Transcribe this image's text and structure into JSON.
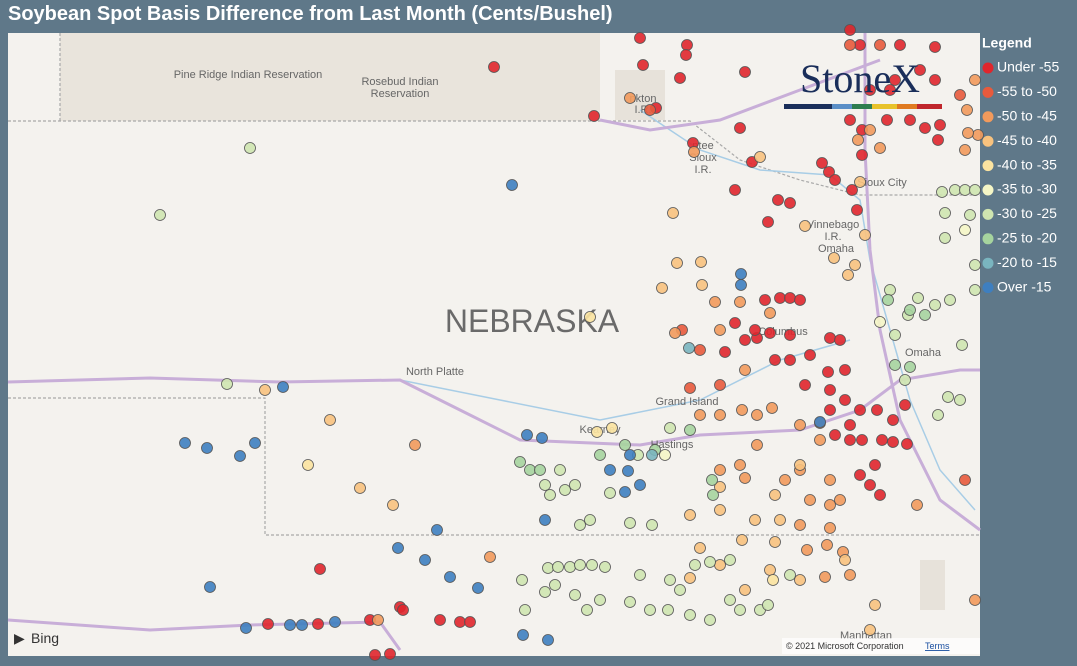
{
  "title": "Soybean Spot Basis Difference from Last Month (Cents/Bushel)",
  "legend": {
    "title": "Legend",
    "items": [
      {
        "label": "Under -55",
        "color": "#e0262c"
      },
      {
        "label": "-55 to -50",
        "color": "#e85a3c"
      },
      {
        "label": "-50 to -45",
        "color": "#f29a5c"
      },
      {
        "label": "-45 to -40",
        "color": "#f8c27e"
      },
      {
        "label": "-40 to -35",
        "color": "#fbe3a0"
      },
      {
        "label": "-35 to -30",
        "color": "#f5f6c6"
      },
      {
        "label": "-30 to -25",
        "color": "#cfe5b0"
      },
      {
        "label": "-25 to -20",
        "color": "#a6d49e"
      },
      {
        "label": "-20 to -15",
        "color": "#7ab5bf"
      },
      {
        "label": "Over -15",
        "color": "#3e7fc0"
      }
    ]
  },
  "logo": "StoneX",
  "map": {
    "labels": [
      "Pine Ridge Indian Reservation",
      "Rosebud Indian",
      "Reservation",
      "nkton",
      "I.R.",
      "ntee",
      "Sioux",
      "I.R.",
      "Sioux City",
      "Vinnebago",
      "I.R.",
      "Omaha",
      "NEBRASKA",
      "Columbus",
      "Omaha",
      "North Platte",
      "Grand Island",
      "Kearney",
      "Hastings",
      "Manhattan"
    ],
    "provider": "Bing",
    "copyright": "© 2021 Microsoft Corporation",
    "terms": "Terms"
  }
}
